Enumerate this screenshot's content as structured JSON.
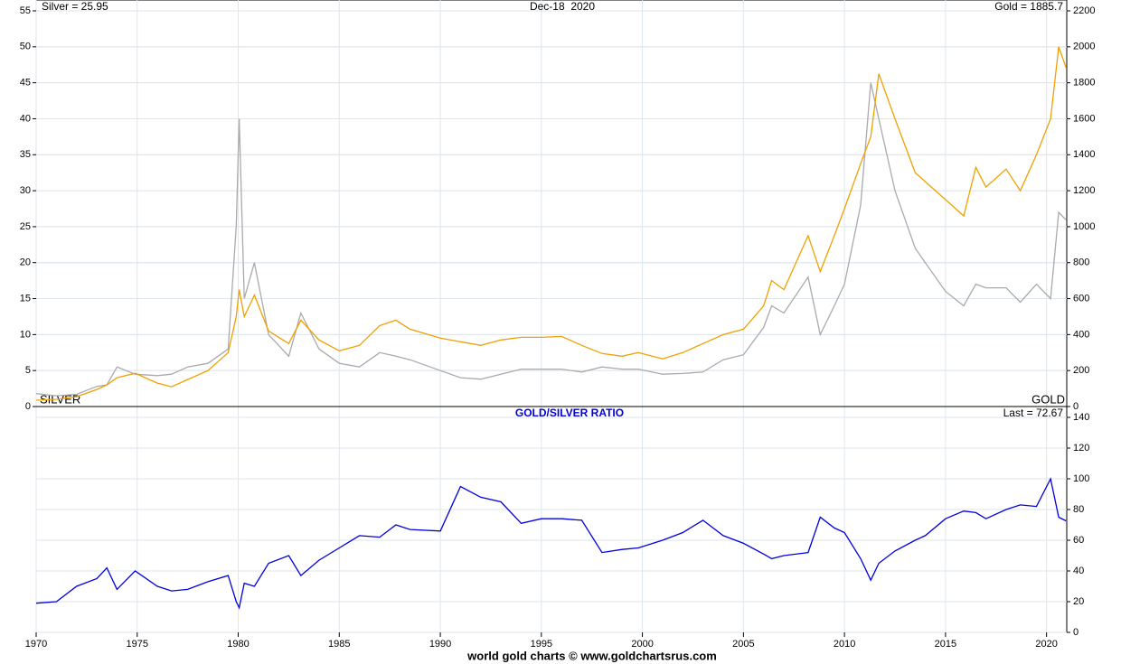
{
  "chart_data": [
    {
      "type": "line",
      "title": "Dec-18  2020",
      "annotations": [
        "Silver = 25.95",
        "Gold = 1885.7"
      ],
      "x": [
        1970,
        1971,
        1972,
        1973,
        1973.5,
        1974,
        1974.9,
        1976,
        1976.7,
        1977.5,
        1978.5,
        1979.5,
        1979.9,
        1980.05,
        1980.3,
        1980.8,
        1981.5,
        1982.5,
        1983.1,
        1984,
        1985,
        1986,
        1987,
        1987.8,
        1988.5,
        1990,
        1991,
        1992,
        1993,
        1994,
        1995,
        1996,
        1997,
        1998,
        1999,
        1999.8,
        2001,
        2002,
        2003,
        2004,
        2005,
        2006,
        2006.4,
        2007,
        2008.2,
        2008.8,
        2009.5,
        2010,
        2010.8,
        2011.3,
        2011.7,
        2012.5,
        2013.5,
        2014,
        2015,
        2015.9,
        2016.5,
        2017,
        2018,
        2018.7,
        2019.5,
        2020.2,
        2020.6,
        2020.96
      ],
      "xlim": [
        1970,
        2021
      ],
      "series": [
        {
          "name": "SILVER",
          "color": "#aaaaaa",
          "axis": "y",
          "values": [
            1.8,
            1.5,
            1.7,
            2.8,
            3.0,
            5.5,
            4.5,
            4.3,
            4.5,
            5.5,
            6.0,
            8,
            25,
            40,
            15,
            20,
            10,
            7,
            13,
            8,
            6,
            5.5,
            7.5,
            7,
            6.5,
            5,
            4,
            3.8,
            4.5,
            5.2,
            5.2,
            5.2,
            4.8,
            5.5,
            5.2,
            5.2,
            4.5,
            4.6,
            4.8,
            6.5,
            7.2,
            11,
            14,
            13,
            18,
            10,
            14,
            17,
            28,
            45,
            40,
            30,
            22,
            20,
            16,
            14,
            17,
            16.5,
            16.5,
            14.5,
            17,
            15,
            27,
            25.95
          ]
        },
        {
          "name": "GOLD",
          "color": "#f0a000",
          "axis": "y2",
          "values": [
            35,
            40,
            55,
            95,
            120,
            160,
            185,
            130,
            110,
            150,
            200,
            300,
            500,
            650,
            500,
            620,
            420,
            350,
            480,
            370,
            310,
            340,
            450,
            480,
            430,
            380,
            360,
            340,
            370,
            385,
            385,
            390,
            340,
            295,
            280,
            300,
            265,
            300,
            350,
            400,
            430,
            560,
            700,
            650,
            950,
            750,
            950,
            1100,
            1350,
            1500,
            1850,
            1600,
            1300,
            1250,
            1150,
            1060,
            1330,
            1220,
            1320,
            1200,
            1400,
            1600,
            2000,
            1885.7
          ]
        }
      ],
      "ylim": [
        0,
        55
      ],
      "yticks": [
        0,
        5,
        10,
        15,
        20,
        25,
        30,
        35,
        40,
        45,
        50,
        55
      ],
      "y2lim": [
        0,
        2200
      ],
      "y2ticks": [
        0,
        200,
        400,
        600,
        800,
        1000,
        1200,
        1400,
        1600,
        1800,
        2000,
        2200
      ],
      "grid": true
    },
    {
      "type": "line",
      "title": "GOLD/SILVER RATIO",
      "annotations": [
        "Last = 72.67"
      ],
      "color": "#0000dd",
      "x": [
        1970,
        1971,
        1972,
        1973,
        1973.5,
        1974,
        1974.9,
        1976,
        1976.7,
        1977.5,
        1978.5,
        1979.5,
        1979.9,
        1980.05,
        1980.3,
        1980.8,
        1981.5,
        1982.5,
        1983.1,
        1984,
        1985,
        1986,
        1987,
        1987.8,
        1988.5,
        1990,
        1991,
        1992,
        1993,
        1994,
        1995,
        1996,
        1997,
        1998,
        1999,
        1999.8,
        2001,
        2002,
        2003,
        2004,
        2005,
        2006,
        2006.4,
        2007,
        2008.2,
        2008.8,
        2009.5,
        2010,
        2010.8,
        2011.3,
        2011.7,
        2012.5,
        2013.5,
        2014,
        2015,
        2015.9,
        2016.5,
        2017,
        2018,
        2018.7,
        2019.5,
        2020.2,
        2020.6,
        2020.96
      ],
      "values": [
        19,
        20,
        30,
        35,
        42,
        28,
        40,
        30,
        27,
        28,
        33,
        37,
        20,
        16,
        32,
        30,
        45,
        50,
        37,
        47,
        55,
        63,
        62,
        70,
        67,
        66,
        95,
        88,
        85,
        71,
        74,
        74,
        73,
        52,
        54,
        55,
        60,
        65,
        73,
        63,
        58,
        51,
        48,
        50,
        52,
        75,
        68,
        65,
        48,
        34,
        45,
        53,
        60,
        63,
        74,
        79,
        78,
        74,
        80,
        83,
        82,
        100,
        75,
        72.67
      ],
      "xlim": [
        1970,
        2021
      ],
      "xticks": [
        1970,
        1975,
        1980,
        1985,
        1990,
        1995,
        2000,
        2005,
        2010,
        2015,
        2020
      ],
      "y2lim": [
        0,
        140
      ],
      "y2ticks": [
        0,
        20,
        40,
        60,
        80,
        100,
        120,
        140
      ],
      "grid": true
    }
  ],
  "source": "world gold charts © www.goldchartsrus.com"
}
